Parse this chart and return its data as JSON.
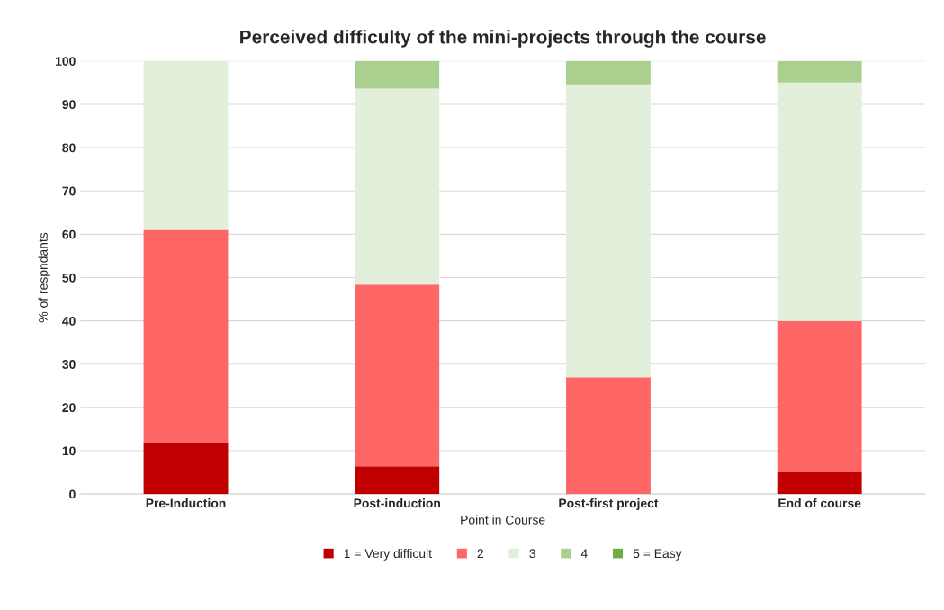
{
  "chart_data": {
    "type": "bar",
    "stacked": true,
    "title": "Perceived difficulty of the mini-projects through the course",
    "xlabel": "Point in Course",
    "ylabel": "% of respndants",
    "categories": [
      "Pre-Induction",
      "Post-induction",
      "Post-first project",
      "End of course"
    ],
    "series": [
      {
        "name": "1 = Very difficult",
        "color": "#c00000",
        "values": [
          12,
          6.4,
          0,
          5
        ]
      },
      {
        "name": "2",
        "color": "#ff6666",
        "values": [
          49,
          42,
          27,
          35
        ]
      },
      {
        "name": "3",
        "color": "#e2efda",
        "values": [
          39,
          45.2,
          67.6,
          55
        ]
      },
      {
        "name": "4",
        "color": "#a9d08e",
        "values": [
          0,
          6.4,
          5.4,
          5
        ]
      },
      {
        "name": "5 = Easy",
        "color": "#70ad47",
        "values": [
          0,
          0,
          0,
          0
        ]
      }
    ],
    "ylim": [
      0,
      100
    ],
    "yticks": [
      0,
      10,
      20,
      30,
      40,
      50,
      60,
      70,
      80,
      90,
      100
    ],
    "grid": "y",
    "legend": "bottom"
  }
}
